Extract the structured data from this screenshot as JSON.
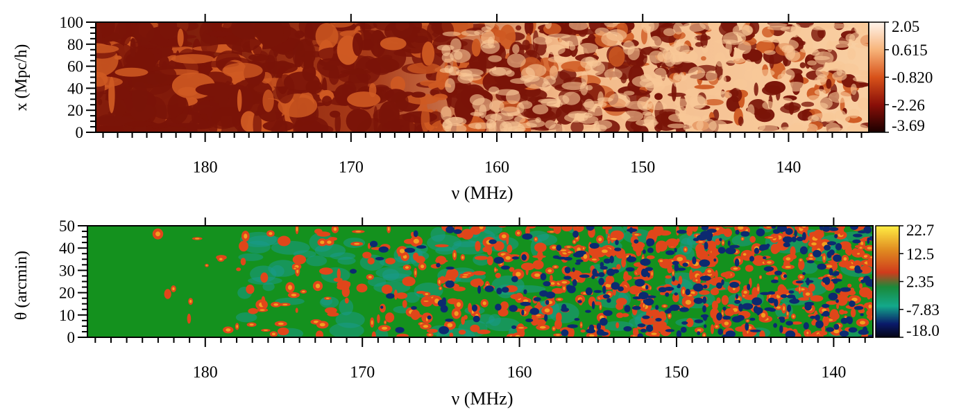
{
  "chart_data": [
    {
      "type": "heatmap",
      "panel": "top",
      "xlabel": "ν (MHz)",
      "ylabel": "x (Mpc/h)",
      "xlim": [
        187.5,
        134.5
      ],
      "ylim": [
        0,
        100
      ],
      "x_ticks": [
        "180",
        "170",
        "160",
        "150",
        "140"
      ],
      "x_tick_values": [
        180,
        170,
        160,
        150,
        140
      ],
      "y_ticks": [
        "100",
        "80",
        "60",
        "40",
        "20",
        "0"
      ],
      "y_tick_values": [
        100,
        80,
        60,
        40,
        20,
        0
      ],
      "colorbar": {
        "labels": [
          "2.05",
          "0.615",
          "-0.820",
          "-2.26",
          "-3.69"
        ],
        "values": [
          2.05,
          0.615,
          -0.82,
          -2.26,
          -3.69
        ],
        "colors": [
          "#fff4ec",
          "#f7b47a",
          "#d8521a",
          "#8a0f08",
          "#1a0000"
        ]
      },
      "colors": {
        "high": "#f9c898",
        "mid": "#cf5a22",
        "low": "#7a1408"
      }
    },
    {
      "type": "heatmap",
      "panel": "bottom",
      "xlabel": "ν (MHz)",
      "ylabel": "θ (arcmin)",
      "xlim": [
        187.5,
        137.5
      ],
      "ylim": [
        0,
        50
      ],
      "x_ticks": [
        "180",
        "170",
        "160",
        "150",
        "140"
      ],
      "x_tick_values": [
        180,
        170,
        160,
        150,
        140
      ],
      "y_ticks": [
        "50",
        "40",
        "30",
        "20",
        "10",
        "0"
      ],
      "y_tick_values": [
        50,
        40,
        30,
        20,
        10,
        0
      ],
      "colorbar": {
        "labels": [
          "22.7",
          "12.5",
          "2.35",
          "-7.83",
          "-18.0"
        ],
        "values": [
          22.7,
          12.5,
          2.35,
          -7.83,
          -18.0
        ],
        "colors": [
          "#ffee44",
          "#e08a20",
          "#cf3b1c",
          "#1a8a3a",
          "#13a88a",
          "#0a1a6a",
          "#050515"
        ]
      },
      "colors": {
        "base": "#14911e",
        "hot": "#e0461a",
        "warm": "#f2a020",
        "cool": "#1a9a8a",
        "cold": "#0c2a70"
      }
    }
  ]
}
